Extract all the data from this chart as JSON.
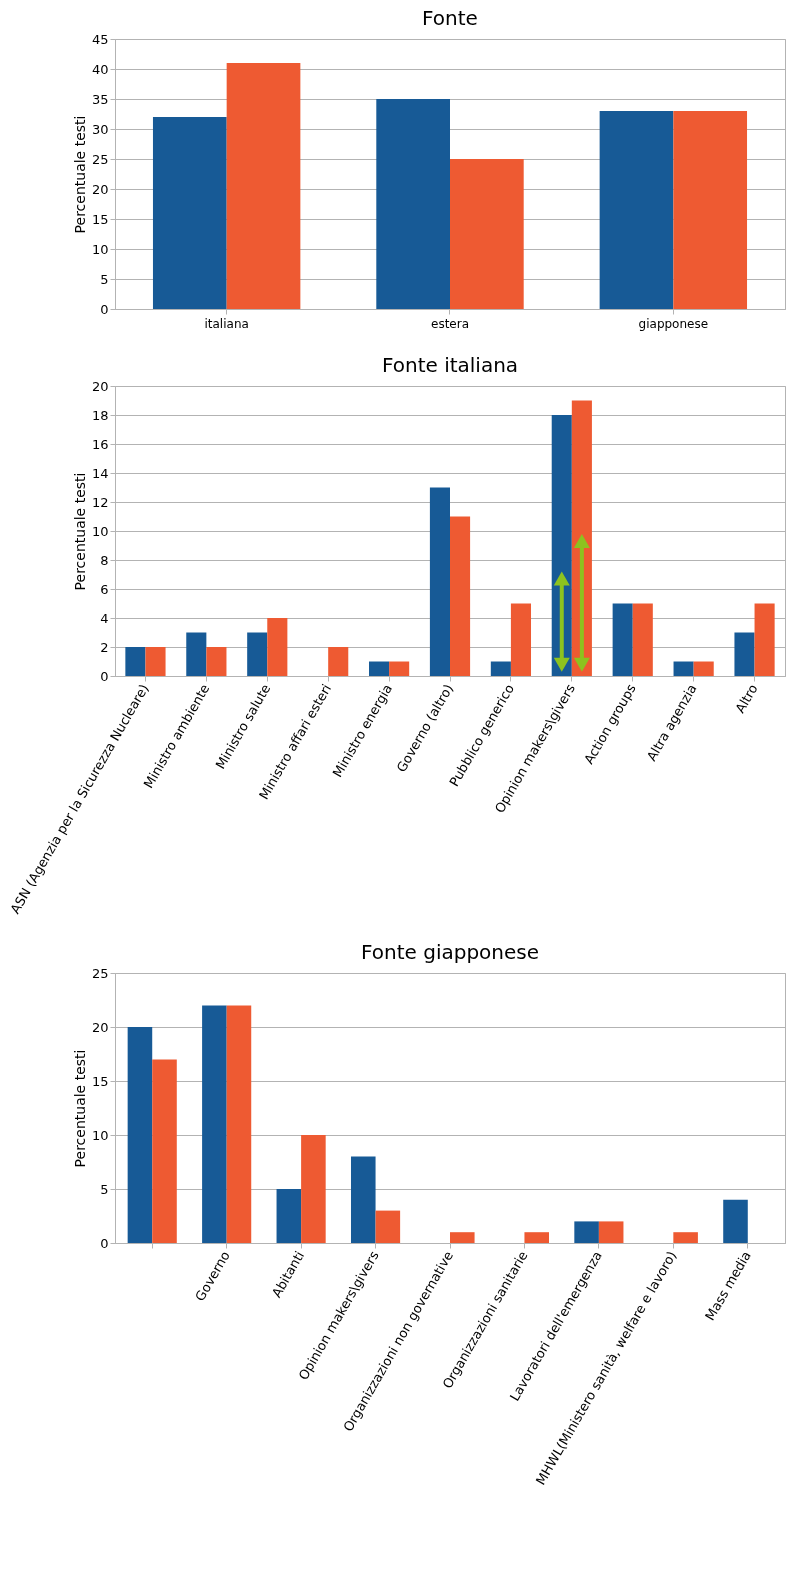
{
  "chart_data": [
    {
      "type": "bar",
      "title": "Fonte",
      "ylabel": "Percentuale testi",
      "categories": [
        "italiana",
        "estera",
        "giapponese"
      ],
      "series": [
        {
          "color": "#175a96",
          "values": [
            32,
            35,
            33
          ]
        },
        {
          "color": "#ee5a32",
          "values": [
            41,
            25,
            33
          ]
        }
      ],
      "ylim": [
        0,
        45
      ],
      "yticks": [
        0,
        5,
        10,
        15,
        20,
        25,
        30,
        35,
        40,
        45
      ],
      "grid": "y"
    },
    {
      "type": "bar",
      "title": "Fonte italiana",
      "ylabel": "Percentuale testi",
      "categories": [
        "ASN (Agenzia per la Sicurezza Nucleare)",
        "Ministro ambiente",
        "Ministro salute",
        "Ministro affari esteri",
        "Ministro energia",
        "Governo (altro)",
        "Pubblico generico",
        "Opinion makers\\givers",
        "Action groups",
        "Altra agenzia",
        "Altro"
      ],
      "series": [
        {
          "color": "#175a96",
          "values": [
            2,
            3,
            3,
            0,
            1,
            13,
            1,
            18,
            5,
            1,
            3
          ]
        },
        {
          "color": "#ee5a32",
          "values": [
            2,
            2,
            4,
            2,
            1,
            11,
            5,
            19,
            5,
            1,
            5
          ]
        }
      ],
      "ylim": [
        0,
        20
      ],
      "yticks": [
        0,
        2,
        4,
        6,
        8,
        10,
        12,
        14,
        16,
        18,
        20
      ],
      "grid": "y"
    },
    {
      "type": "bar",
      "title": "Fonte giapponese",
      "ylabel": "Percentuale testi",
      "categories": [
        null,
        "Governo",
        "Abitanti",
        "Opinion makers\\givers",
        "Organizzazioni non governative",
        "Organizzazioni sanitarie",
        "Lavoratori dell'emergenza",
        "MHWL(Ministero sanità, welfare e lavoro)",
        "Mass media"
      ],
      "series": [
        {
          "color": "#175a96",
          "values": [
            20,
            22,
            5,
            8,
            0,
            0,
            2,
            0,
            4
          ]
        },
        {
          "color": "#ee5a32",
          "values": [
            17,
            22,
            10,
            3,
            1,
            1,
            2,
            1,
            0
          ]
        }
      ],
      "ylim": [
        0,
        25
      ],
      "yticks": [
        0,
        5,
        10,
        15,
        20,
        25
      ],
      "grid": "y"
    }
  ]
}
